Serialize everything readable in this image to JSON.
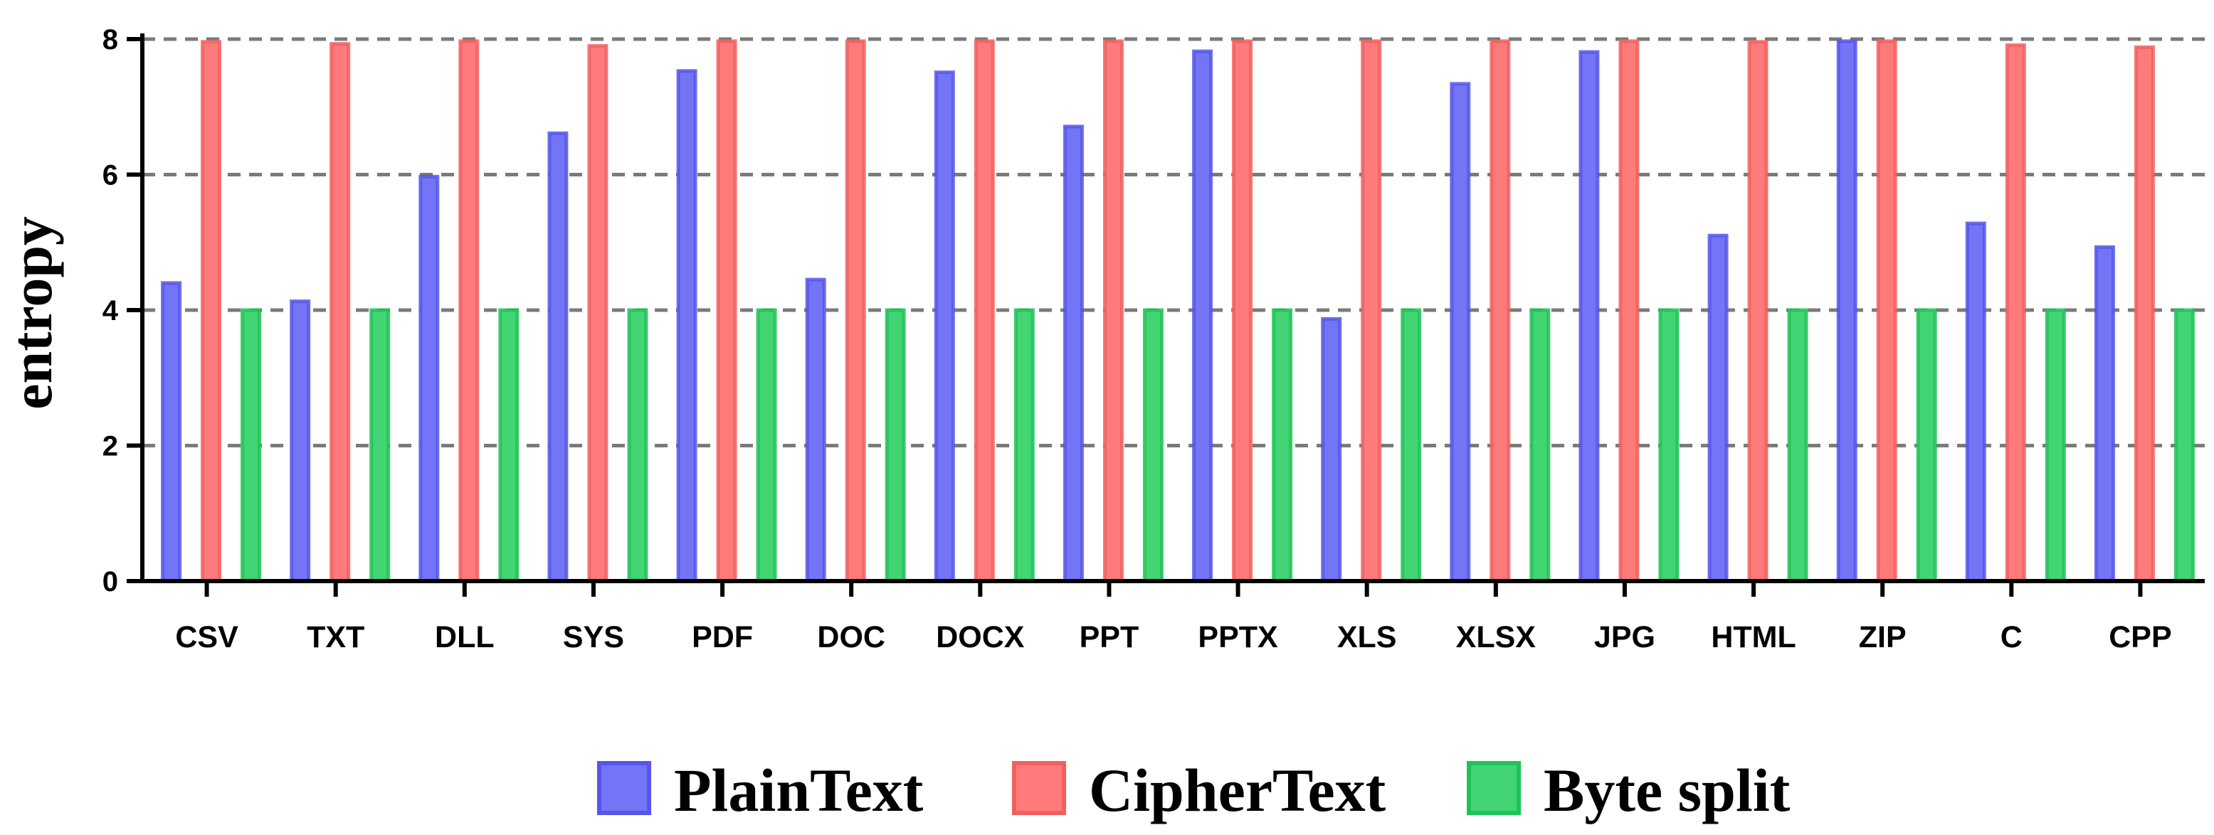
{
  "chart_data": {
    "type": "bar",
    "title": "",
    "xlabel": "",
    "ylabel": "entropy",
    "ylim": [
      0,
      8
    ],
    "yticks": [
      0,
      2,
      4,
      6,
      8
    ],
    "grid": "dashed horizontal at y ticks 2, 4, 6, 8",
    "legend_position": "bottom",
    "categories": [
      "CSV",
      "TXT",
      "DLL",
      "SYS",
      "PDF",
      "DOC",
      "DOCX",
      "PPT",
      "PPTX",
      "XLS",
      "XLSX",
      "JPG",
      "HTML",
      "ZIP",
      "C",
      "CPP"
    ],
    "series": [
      {
        "name": "PlainText",
        "color": "#5b5bf5",
        "values": [
          4.4,
          4.13,
          5.97,
          6.61,
          7.53,
          4.45,
          7.51,
          6.71,
          7.82,
          3.87,
          7.34,
          7.81,
          5.1,
          7.97,
          5.28,
          4.93
        ]
      },
      {
        "name": "CipherText",
        "color": "#ff6464",
        "values": [
          7.96,
          7.93,
          7.97,
          7.9,
          7.97,
          7.97,
          7.97,
          7.97,
          7.97,
          7.97,
          7.97,
          7.97,
          7.96,
          7.97,
          7.91,
          7.88
        ]
      },
      {
        "name": "Byte split",
        "color": "#22cc5c",
        "values": [
          4.0,
          4.0,
          4.0,
          4.0,
          4.0,
          4.0,
          4.0,
          4.0,
          4.0,
          4.0,
          4.0,
          4.0,
          4.0,
          4.0,
          4.0,
          4.0
        ]
      }
    ]
  }
}
